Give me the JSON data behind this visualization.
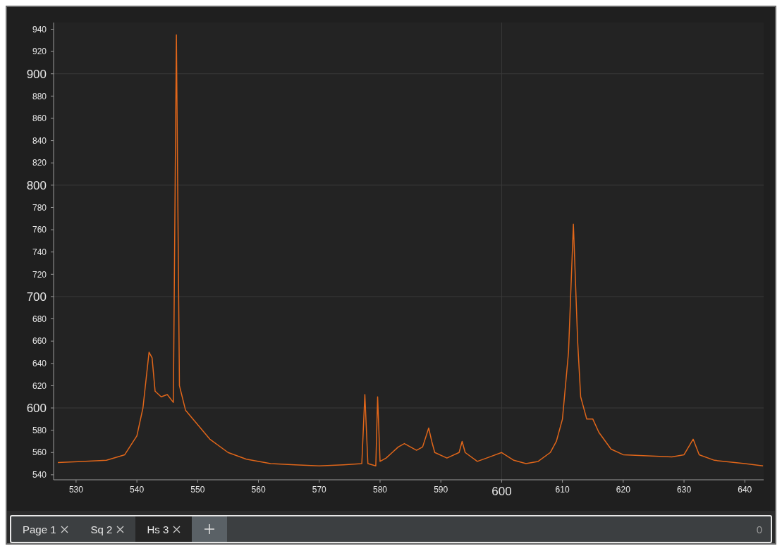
{
  "chart_data": {
    "type": "line",
    "x": [
      527,
      531,
      535,
      538,
      540,
      541,
      542,
      542.5,
      543,
      544,
      545,
      546,
      546.5,
      547,
      548,
      550,
      552,
      555,
      558,
      562,
      566,
      570,
      574,
      577,
      577.5,
      578,
      579.3,
      579.6,
      580,
      581,
      582,
      583,
      584,
      585,
      586,
      587,
      588,
      588.5,
      589,
      591,
      593,
      593.5,
      594,
      596,
      598,
      600,
      602,
      604,
      606,
      608,
      609,
      610,
      611,
      611.8,
      612.5,
      613,
      614,
      615,
      616,
      618,
      620,
      624,
      628,
      630,
      631.5,
      632.5,
      635,
      640,
      643
    ],
    "series": [
      {
        "color": "#e0661a",
        "values": [
          551,
          552,
          553,
          558,
          575,
          600,
          650,
          645,
          615,
          610,
          612,
          605,
          935,
          620,
          598,
          585,
          572,
          560,
          554,
          550,
          549,
          548,
          549,
          550,
          612,
          550,
          548,
          610,
          552,
          555,
          560,
          565,
          568,
          565,
          562,
          565,
          582,
          570,
          560,
          555,
          560,
          570,
          560,
          552,
          556,
          560,
          553,
          550,
          552,
          560,
          570,
          590,
          650,
          765,
          660,
          610,
          590,
          590,
          578,
          563,
          558,
          557,
          556,
          558,
          572,
          558,
          553,
          550,
          548
        ]
      }
    ],
    "xlim": [
      526.3,
      643.1
    ],
    "ylim": [
      535.5,
      946
    ],
    "xticks": [
      530,
      540,
      550,
      560,
      570,
      580,
      590,
      600,
      610,
      620,
      630,
      640
    ],
    "yticks": [
      540,
      560,
      580,
      600,
      620,
      640,
      660,
      680,
      700,
      720,
      740,
      760,
      780,
      800,
      820,
      840,
      860,
      880,
      900,
      920,
      940
    ],
    "grid": true,
    "marker": "none",
    "line_style": "solid",
    "annotations": [
      "Page 1",
      "Sq 2",
      "Hs 3",
      "0"
    ]
  }
}
